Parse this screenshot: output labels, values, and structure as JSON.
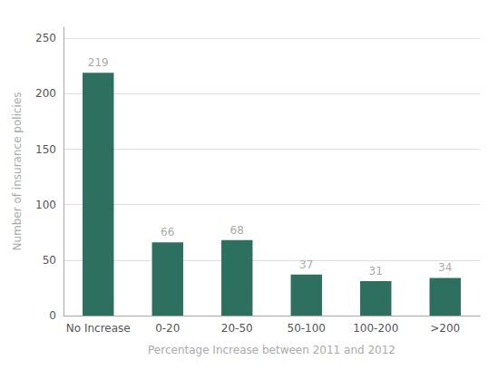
{
  "chart_data": {
    "type": "bar",
    "categories": [
      "No Increase",
      "0-20",
      "20-50",
      "50-100",
      "100-200",
      ">200"
    ],
    "values": [
      219,
      66,
      68,
      37,
      31,
      34
    ],
    "color": "#2d7060",
    "xlabel": "Percentage Increase between 2011 and 2012",
    "ylabel": "Number of insurance policies",
    "ylim": [
      0,
      260
    ],
    "yticks": [
      0,
      50,
      100,
      150,
      200,
      250
    ],
    "grid": true,
    "data_labels": true
  }
}
